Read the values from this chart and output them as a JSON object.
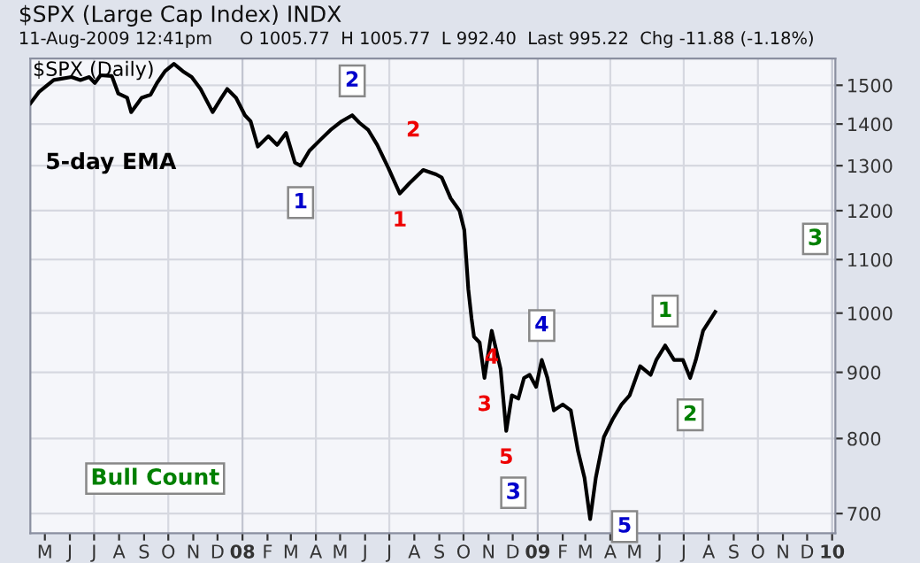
{
  "chart_data": {
    "type": "line",
    "title": "$SPX (Large Cap Index) INDX",
    "subtitle": "11-Aug-2009 12:41pm     O 1005.77  H 1005.77  L 992.40  Last 995.22  Chg -11.88 (-1.18%)",
    "x": [
      "2007-04-13",
      "2007-04-24",
      "2007-05-12",
      "2007-06-03",
      "2007-06-14",
      "2007-06-25",
      "2007-07-02",
      "2007-07-09",
      "2007-07-23",
      "2007-07-31",
      "2007-08-11",
      "2007-08-16",
      "2007-08-29",
      "2007-09-09",
      "2007-09-17",
      "2007-09-27",
      "2007-10-08",
      "2007-10-19",
      "2007-10-30",
      "2007-11-10",
      "2007-11-25",
      "2007-12-06",
      "2007-12-13",
      "2007-12-24",
      "2008-01-04",
      "2008-01-11",
      "2008-01-20",
      "2008-02-02",
      "2008-02-13",
      "2008-02-24",
      "2008-03-06",
      "2008-03-13",
      "2008-03-24",
      "2008-04-08",
      "2008-04-19",
      "2008-05-03",
      "2008-05-16",
      "2008-05-25",
      "2008-06-05",
      "2008-06-16",
      "2008-06-30",
      "2008-07-14",
      "2008-07-26",
      "2008-08-12",
      "2008-08-28",
      "2008-09-04",
      "2008-09-15",
      "2008-09-26",
      "2008-10-02",
      "2008-10-07",
      "2008-10-11",
      "2008-10-14",
      "2008-10-21",
      "2008-10-27",
      "2008-11-05",
      "2008-11-16",
      "2008-11-23",
      "2008-11-30",
      "2008-12-08",
      "2008-12-15",
      "2008-12-22",
      "2008-12-30",
      "2009-01-06",
      "2009-01-13",
      "2009-01-21",
      "2009-02-01",
      "2009-02-11",
      "2009-02-20",
      "2009-02-28",
      "2009-03-07",
      "2009-03-14",
      "2009-03-24",
      "2009-04-04",
      "2009-04-15",
      "2009-04-25",
      "2009-05-08",
      "2009-05-21",
      "2009-05-28",
      "2009-06-08",
      "2009-06-19",
      "2009-06-30",
      "2009-07-09",
      "2009-07-16",
      "2009-07-25",
      "2009-08-09"
    ],
    "series": [
      {
        "name": "$SPX (Daily)",
        "color": "#000000",
        "values": [
          1452,
          1483,
          1514,
          1522,
          1514,
          1522,
          1506,
          1527,
          1525,
          1478,
          1467,
          1430,
          1467,
          1475,
          1506,
          1538,
          1558,
          1538,
          1522,
          1490,
          1430,
          1467,
          1490,
          1467,
          1422,
          1407,
          1345,
          1370,
          1349,
          1378,
          1307,
          1300,
          1335,
          1364,
          1385,
          1407,
          1422,
          1403,
          1385,
          1349,
          1294,
          1237,
          1260,
          1290,
          1280,
          1273,
          1227,
          1200,
          1159,
          1043,
          990,
          959,
          949,
          891,
          969,
          905,
          811,
          864,
          859,
          891,
          896,
          877,
          920,
          891,
          841,
          850,
          841,
          782,
          746,
          693,
          746,
          802,
          828,
          850,
          864,
          910,
          896,
          920,
          944,
          920,
          920,
          891,
          920,
          969,
          1002
        ]
      }
    ],
    "log": "y",
    "xlim": [
      "2007-04-13",
      "2010-01-05"
    ],
    "ylim": [
      676,
      1573
    ],
    "yticks": [
      700,
      800,
      900,
      1000,
      1100,
      1200,
      1300,
      1400,
      1500
    ],
    "xticks": [
      {
        "value": "2007-05",
        "label": "M"
      },
      {
        "value": "2007-06",
        "label": "J"
      },
      {
        "value": "2007-07",
        "label": "J"
      },
      {
        "value": "2007-08",
        "label": "A"
      },
      {
        "value": "2007-09",
        "label": "S"
      },
      {
        "value": "2007-10",
        "label": "O"
      },
      {
        "value": "2007-11",
        "label": "N"
      },
      {
        "value": "2007-12",
        "label": "D"
      },
      {
        "value": "2008-01",
        "label": "08"
      },
      {
        "value": "2008-02",
        "label": "F"
      },
      {
        "value": "2008-03",
        "label": "M"
      },
      {
        "value": "2008-04",
        "label": "A"
      },
      {
        "value": "2008-05",
        "label": "M"
      },
      {
        "value": "2008-06",
        "label": "J"
      },
      {
        "value": "2008-07",
        "label": "J"
      },
      {
        "value": "2008-08",
        "label": "A"
      },
      {
        "value": "2008-09",
        "label": "S"
      },
      {
        "value": "2008-10",
        "label": "O"
      },
      {
        "value": "2008-11",
        "label": "N"
      },
      {
        "value": "2008-12",
        "label": "D"
      },
      {
        "value": "2009-01",
        "label": "09"
      },
      {
        "value": "2009-02",
        "label": "F"
      },
      {
        "value": "2009-03",
        "label": "M"
      },
      {
        "value": "2009-04",
        "label": "A"
      },
      {
        "value": "2009-05",
        "label": "M"
      },
      {
        "value": "2009-06",
        "label": "J"
      },
      {
        "value": "2009-07",
        "label": "J"
      },
      {
        "value": "2009-08",
        "label": "A"
      },
      {
        "value": "2009-09",
        "label": "S"
      },
      {
        "value": "2009-10",
        "label": "O"
      },
      {
        "value": "2009-11",
        "label": "N"
      },
      {
        "value": "2009-12",
        "label": "D"
      },
      {
        "value": "2010-01",
        "label": "10"
      }
    ],
    "grid": true,
    "line_style": "solid",
    "marker": "none",
    "annotations": [
      "5-day EMA",
      "Bull Count",
      "3",
      "3",
      {
        "text": "1",
        "x": "2008-03-13",
        "y": 1300
      },
      {
        "text": "2",
        "x": "2008-05-16",
        "y": 1422
      },
      {
        "text": "4",
        "x": "2009-01-06",
        "y": 920
      },
      {
        "text": "5",
        "x": "2009-03-07",
        "y": 693
      },
      {
        "text": "1",
        "x": "2008-07-14",
        "y": 1237
      },
      {
        "text": "2",
        "x": "2008-08-12",
        "y": 1290
      },
      {
        "text": "3",
        "x": "2008-10-27",
        "y": 891
      },
      {
        "text": "4",
        "x": "2008-11-05",
        "y": 969
      },
      {
        "text": "5",
        "x": "2008-11-23",
        "y": 811
      },
      {
        "text": "1",
        "x": "2009-06-08",
        "y": 944
      },
      {
        "text": "2",
        "x": "2009-07-09",
        "y": 891
      }
    ]
  }
}
